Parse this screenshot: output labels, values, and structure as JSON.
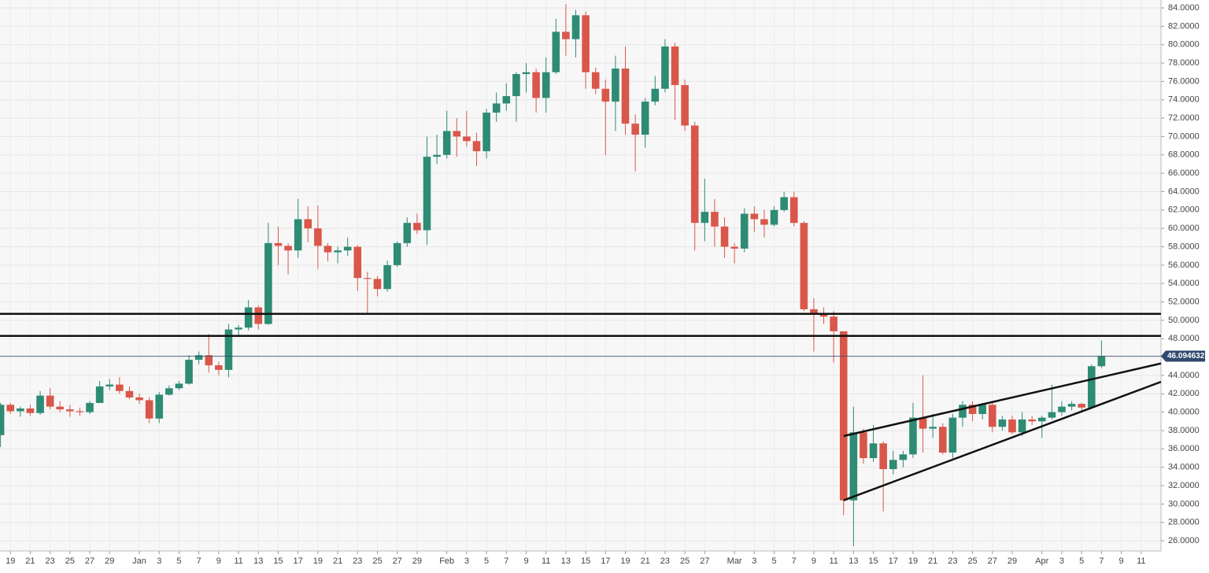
{
  "chart_data": {
    "type": "candlestick",
    "x": [
      0,
      1,
      2,
      3,
      4,
      5,
      6,
      7,
      8,
      9,
      10,
      11,
      12,
      13,
      14,
      15,
      16,
      17,
      18,
      19,
      20,
      21,
      22,
      23,
      24,
      25,
      26,
      27,
      28,
      29,
      30,
      31,
      32,
      33,
      34,
      35,
      36,
      37,
      38,
      39,
      40,
      41,
      42,
      43,
      44,
      45,
      46,
      47,
      48,
      49,
      50,
      51,
      52,
      53,
      54,
      55,
      56,
      57,
      58,
      59,
      60,
      61,
      62,
      63,
      64,
      65,
      66,
      67,
      68,
      69,
      70,
      71,
      72,
      73,
      74,
      75,
      76,
      77,
      78,
      79,
      80,
      81,
      82,
      83,
      84,
      85,
      86,
      87,
      88,
      89,
      90,
      91,
      92,
      93,
      94,
      95,
      96,
      97,
      98,
      99,
      100,
      101,
      102,
      103,
      104,
      105,
      106,
      107,
      108,
      109,
      110,
      111
    ],
    "open": [
      37.5,
      40.8,
      40.1,
      40.4,
      39.9,
      41.8,
      40.6,
      40.3,
      40.1,
      40.0,
      41.0,
      42.8,
      43.0,
      42.3,
      41.6,
      41.3,
      39.3,
      41.9,
      42.6,
      43.1,
      45.7,
      46.2,
      45.1,
      44.6,
      49.0,
      49.2,
      51.4,
      49.6,
      58.4,
      58.1,
      57.6,
      61.0,
      60.0,
      58.1,
      57.4,
      57.6,
      58.0,
      54.6,
      54.5,
      53.4,
      56.0,
      58.4,
      60.6,
      59.8,
      67.8,
      68.0,
      70.6,
      70.0,
      69.5,
      68.4,
      72.6,
      73.6,
      74.4,
      76.8,
      77.0,
      74.2,
      77.0,
      81.4,
      80.6,
      83.2,
      77.0,
      75.2,
      73.8,
      77.4,
      71.4,
      70.2,
      73.8,
      75.2,
      79.8,
      75.6,
      71.2,
      60.6,
      61.8,
      60.2,
      58.0,
      57.8,
      61.6,
      61.0,
      60.4,
      62.0,
      63.4,
      60.6,
      51.2,
      50.8,
      50.4,
      48.8,
      30.4,
      37.8,
      35.0,
      36.6,
      33.8,
      34.8,
      35.4,
      39.4,
      38.2,
      38.4,
      35.6,
      39.4,
      40.8,
      39.8,
      40.8,
      38.4,
      39.2,
      37.8,
      39.2,
      39.0,
      39.4,
      40.0,
      40.6,
      40.9,
      40.5,
      45.0
    ],
    "high": [
      41.0,
      41.0,
      40.6,
      40.8,
      42.3,
      42.6,
      41.2,
      40.8,
      40.5,
      41.2,
      43.4,
      43.6,
      43.8,
      42.8,
      42.0,
      41.6,
      42.2,
      42.9,
      43.4,
      46.2,
      46.6,
      48.5,
      45.5,
      49.6,
      49.5,
      52.2,
      51.6,
      60.6,
      60.2,
      58.4,
      63.2,
      62.4,
      62.5,
      58.4,
      58.0,
      59.0,
      58.2,
      55.3,
      54.8,
      56.5,
      58.6,
      61.2,
      61.6,
      70.0,
      70.2,
      72.8,
      72.0,
      72.8,
      70.4,
      73.0,
      74.8,
      75.8,
      77.0,
      78.0,
      77.4,
      78.6,
      82.8,
      84.4,
      83.8,
      83.6,
      77.5,
      76.2,
      78.8,
      79.8,
      72.4,
      74.2,
      76.6,
      80.6,
      80.2,
      76.2,
      71.6,
      65.4,
      63.2,
      61.2,
      58.4,
      62.2,
      62.4,
      62.0,
      62.4,
      64.0,
      64.0,
      60.8,
      52.4,
      51.4,
      51.0,
      48.8,
      40.6,
      38.2,
      38.6,
      36.8,
      35.8,
      35.8,
      41.0,
      44.0,
      39.8,
      38.8,
      39.8,
      41.2,
      41.2,
      41.0,
      41.2,
      39.6,
      39.6,
      40.0,
      39.6,
      39.6,
      43.0,
      41.2,
      41.2,
      41.0,
      45.2,
      47.8
    ],
    "low": [
      36.2,
      39.8,
      39.5,
      39.6,
      39.7,
      40.3,
      40.0,
      39.5,
      39.6,
      39.8,
      41.0,
      42.4,
      42.0,
      41.4,
      40.9,
      38.8,
      38.8,
      41.8,
      42.4,
      43.0,
      45.2,
      44.3,
      44.0,
      43.8,
      48.4,
      48.9,
      49.0,
      49.5,
      56.0,
      55.0,
      56.8,
      58.5,
      55.6,
      56.4,
      56.2,
      57.0,
      53.2,
      50.8,
      52.6,
      53.1,
      55.8,
      58.0,
      59.4,
      58.2,
      67.0,
      67.6,
      67.8,
      68.9,
      66.8,
      67.6,
      71.6,
      72.8,
      71.6,
      74.8,
      72.6,
      72.6,
      76.8,
      78.8,
      78.6,
      75.2,
      74.6,
      68.0,
      70.6,
      70.2,
      66.2,
      68.8,
      73.4,
      74.8,
      71.8,
      70.6,
      57.6,
      58.6,
      58.0,
      56.8,
      56.2,
      57.4,
      59.6,
      59.0,
      60.2,
      61.8,
      60.2,
      51.0,
      46.6,
      49.6,
      45.4,
      28.8,
      25.4,
      34.4,
      34.6,
      29.2,
      33.2,
      34.0,
      35.0,
      35.6,
      37.2,
      35.4,
      35.0,
      38.4,
      39.0,
      39.2,
      37.8,
      38.0,
      37.6,
      37.4,
      38.6,
      37.2,
      39.2,
      39.6,
      40.2,
      40.2,
      40.4,
      44.8
    ],
    "close": [
      40.8,
      40.1,
      40.4,
      39.9,
      41.8,
      40.6,
      40.3,
      40.1,
      40.0,
      41.0,
      42.8,
      43.0,
      42.3,
      41.6,
      41.3,
      39.3,
      41.9,
      42.6,
      43.1,
      45.7,
      46.2,
      45.1,
      44.6,
      49.0,
      49.2,
      51.4,
      49.6,
      58.4,
      58.1,
      57.6,
      61.0,
      60.0,
      58.1,
      57.4,
      57.6,
      58.0,
      54.6,
      54.5,
      53.4,
      56.0,
      58.4,
      60.6,
      59.8,
      67.8,
      68.0,
      70.6,
      70.0,
      69.5,
      68.4,
      72.6,
      73.6,
      74.4,
      76.8,
      77.0,
      74.2,
      77.0,
      81.4,
      80.6,
      83.2,
      77.0,
      75.2,
      73.8,
      77.4,
      71.4,
      70.2,
      73.8,
      75.2,
      79.8,
      75.6,
      71.2,
      60.6,
      61.8,
      60.2,
      58.0,
      57.8,
      61.6,
      61.0,
      60.4,
      62.0,
      63.4,
      60.6,
      51.2,
      50.8,
      50.4,
      48.8,
      30.4,
      37.8,
      35.0,
      36.6,
      33.8,
      34.8,
      35.4,
      39.4,
      38.2,
      38.4,
      35.6,
      39.4,
      40.8,
      39.8,
      40.8,
      38.4,
      39.2,
      37.8,
      39.2,
      39.0,
      39.4,
      40.0,
      40.6,
      40.9,
      40.5,
      45.0,
      46.1
    ],
    "up_color": "#2e8b74",
    "down_color": "#d9574a",
    "xlim": [
      -0.05,
      117
    ],
    "xticks": [
      {
        "value": 1,
        "label": "19"
      },
      {
        "value": 3,
        "label": "21"
      },
      {
        "value": 5,
        "label": "23"
      },
      {
        "value": 7,
        "label": "25"
      },
      {
        "value": 9,
        "label": "27"
      },
      {
        "value": 11,
        "label": "29"
      },
      {
        "value": 14,
        "label": "Jan"
      },
      {
        "value": 16,
        "label": "3"
      },
      {
        "value": 18,
        "label": "5"
      },
      {
        "value": 20,
        "label": "7"
      },
      {
        "value": 22,
        "label": "9"
      },
      {
        "value": 24,
        "label": "11"
      },
      {
        "value": 26,
        "label": "13"
      },
      {
        "value": 28,
        "label": "15"
      },
      {
        "value": 30,
        "label": "17"
      },
      {
        "value": 32,
        "label": "19"
      },
      {
        "value": 34,
        "label": "21"
      },
      {
        "value": 36,
        "label": "23"
      },
      {
        "value": 38,
        "label": "25"
      },
      {
        "value": 40,
        "label": "27"
      },
      {
        "value": 42,
        "label": "29"
      },
      {
        "value": 45,
        "label": "Feb"
      },
      {
        "value": 47,
        "label": "3"
      },
      {
        "value": 49,
        "label": "5"
      },
      {
        "value": 51,
        "label": "7"
      },
      {
        "value": 53,
        "label": "9"
      },
      {
        "value": 55,
        "label": "11"
      },
      {
        "value": 57,
        "label": "13"
      },
      {
        "value": 59,
        "label": "15"
      },
      {
        "value": 61,
        "label": "17"
      },
      {
        "value": 63,
        "label": "19"
      },
      {
        "value": 65,
        "label": "21"
      },
      {
        "value": 67,
        "label": "23"
      },
      {
        "value": 69,
        "label": "25"
      },
      {
        "value": 71,
        "label": "27"
      },
      {
        "value": 74,
        "label": "Mar"
      },
      {
        "value": 76,
        "label": "3"
      },
      {
        "value": 78,
        "label": "5"
      },
      {
        "value": 80,
        "label": "7"
      },
      {
        "value": 82,
        "label": "9"
      },
      {
        "value": 84,
        "label": "11"
      },
      {
        "value": 86,
        "label": "13"
      },
      {
        "value": 88,
        "label": "15"
      },
      {
        "value": 90,
        "label": "17"
      },
      {
        "value": 92,
        "label": "19"
      },
      {
        "value": 94,
        "label": "21"
      },
      {
        "value": 96,
        "label": "23"
      },
      {
        "value": 98,
        "label": "25"
      },
      {
        "value": 100,
        "label": "27"
      },
      {
        "value": 102,
        "label": "29"
      },
      {
        "value": 105,
        "label": "Apr"
      },
      {
        "value": 107,
        "label": "3"
      },
      {
        "value": 109,
        "label": "5"
      },
      {
        "value": 111,
        "label": "7"
      },
      {
        "value": 113,
        "label": "9"
      },
      {
        "value": 115,
        "label": "11"
      }
    ],
    "ylim": [
      24.89,
      84.86
    ],
    "yticks": [
      {
        "value": 26,
        "label": "26.0000"
      },
      {
        "value": 28,
        "label": "28.0000"
      },
      {
        "value": 30,
        "label": "30.0000"
      },
      {
        "value": 32,
        "label": "32.0000"
      },
      {
        "value": 34,
        "label": "34.0000"
      },
      {
        "value": 36,
        "label": "36.0000"
      },
      {
        "value": 38,
        "label": "38.0000"
      },
      {
        "value": 40,
        "label": "40.0000"
      },
      {
        "value": 42,
        "label": "42.0000"
      },
      {
        "value": 44,
        "label": "44.0000"
      },
      {
        "value": 46,
        "label": "46.0000"
      },
      {
        "value": 48,
        "label": "48.0000"
      },
      {
        "value": 50,
        "label": "50.0000"
      },
      {
        "value": 52,
        "label": "52.0000"
      },
      {
        "value": 54,
        "label": "54.0000"
      },
      {
        "value": 56,
        "label": "56.0000"
      },
      {
        "value": 58,
        "label": "58.0000"
      },
      {
        "value": 60,
        "label": "60.0000"
      },
      {
        "value": 62,
        "label": "62.0000"
      },
      {
        "value": 64,
        "label": "64.0000"
      },
      {
        "value": 66,
        "label": "66.0000"
      },
      {
        "value": 68,
        "label": "68.0000"
      },
      {
        "value": 70,
        "label": "70.0000"
      },
      {
        "value": 72,
        "label": "72.0000"
      },
      {
        "value": 74,
        "label": "74.0000"
      },
      {
        "value": 76,
        "label": "76.0000"
      },
      {
        "value": 78,
        "label": "78.0000"
      },
      {
        "value": 80,
        "label": "80.0000"
      },
      {
        "value": 82,
        "label": "82.0000"
      },
      {
        "value": 84,
        "label": "84.0000"
      }
    ],
    "grid": true,
    "last_price": 46.094632,
    "last_price_color": "#2f4a6e",
    "hlines": [
      50.7,
      48.3
    ],
    "trendlines": [
      {
        "x": [
          85,
          117
        ],
        "y": [
          37.4,
          45.3
        ]
      },
      {
        "x": [
          85,
          117
        ],
        "y": [
          30.4,
          43.3
        ]
      }
    ]
  }
}
